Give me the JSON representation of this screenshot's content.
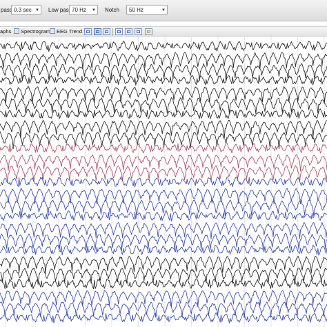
{
  "filters": {
    "hp_label": "pass",
    "hp_value": "0.3 sec",
    "lp_label": "Low pass",
    "lp_value": "70 Hz",
    "notch_label": "Notch",
    "notch_value": "50 Hz"
  },
  "tabs": {
    "graphs": "aphs",
    "spectrogram": "Spectrogram",
    "eeg_trend": "EEG Trend"
  },
  "colors": {
    "black_trace": "#2b2b2b",
    "red_trace": "#b0546a",
    "blue_trace": "#3e4fb0"
  },
  "montage": {
    "channel_colors": [
      "black",
      "black",
      "black",
      "black",
      "black",
      "black",
      "black",
      "black",
      "black",
      "red",
      "red",
      "red",
      "blue",
      "blue",
      "blue",
      "blue",
      "blue",
      "blue",
      "blue",
      "black",
      "black",
      "black",
      "blue",
      "blue",
      "blue"
    ]
  }
}
